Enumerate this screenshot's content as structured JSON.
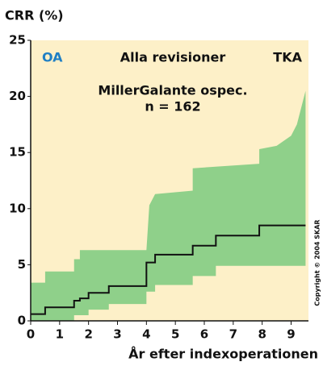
{
  "chart_data": {
    "type": "step-band",
    "ylabel": "CRR (%)",
    "xlabel": "År efter indexoperationen",
    "annotations": {
      "left": "OA",
      "center": "Alla revisioner",
      "right": "TKA",
      "subtitle": "MillerGalante ospec.",
      "n": "n = 162",
      "copyright": "Copyright © 2004 SKAR"
    },
    "xlim": [
      0,
      9.6
    ],
    "ylim": [
      0,
      25
    ],
    "xticks": [
      0,
      1,
      2,
      3,
      4,
      5,
      6,
      7,
      8,
      9
    ],
    "yticks": [
      0,
      5,
      10,
      15,
      20,
      25
    ],
    "background": "#fdf0c8",
    "left_color": "#1f7fc4",
    "band": {
      "color": "#8fd08a",
      "upper": {
        "x": [
          0,
          0.5,
          0.5,
          1.5,
          1.5,
          1.7,
          1.7,
          4.0,
          4.1,
          4.3,
          5.6,
          5.6,
          7.9,
          7.9,
          8.5,
          9.0,
          9.2,
          9.4,
          9.5
        ],
        "values": [
          3.4,
          3.4,
          4.4,
          4.4,
          5.5,
          5.5,
          6.3,
          6.3,
          10.3,
          11.3,
          11.6,
          13.6,
          14.0,
          15.3,
          15.6,
          16.5,
          17.5,
          19.5,
          20.5
        ]
      },
      "lower": {
        "x": [
          0,
          1.5,
          1.5,
          2,
          2,
          2.7,
          2.7,
          4.0,
          4.0,
          4.3,
          4.3,
          5.6,
          5.6,
          6.4,
          6.4,
          9.5
        ],
        "values": [
          0,
          0,
          0.5,
          0.5,
          1.0,
          1.0,
          1.5,
          1.5,
          2.6,
          2.6,
          3.2,
          3.2,
          4.0,
          4.0,
          4.9,
          4.9
        ]
      }
    },
    "line": {
      "color": "#111111",
      "step": "post",
      "x": [
        0,
        0.5,
        1.5,
        1.7,
        2,
        2.7,
        4,
        4.3,
        5.6,
        6.4,
        7.9,
        9.5
      ],
      "values": [
        0.6,
        1.2,
        1.8,
        2.0,
        2.5,
        3.1,
        5.2,
        5.9,
        6.7,
        7.6,
        8.5,
        8.5
      ]
    }
  }
}
